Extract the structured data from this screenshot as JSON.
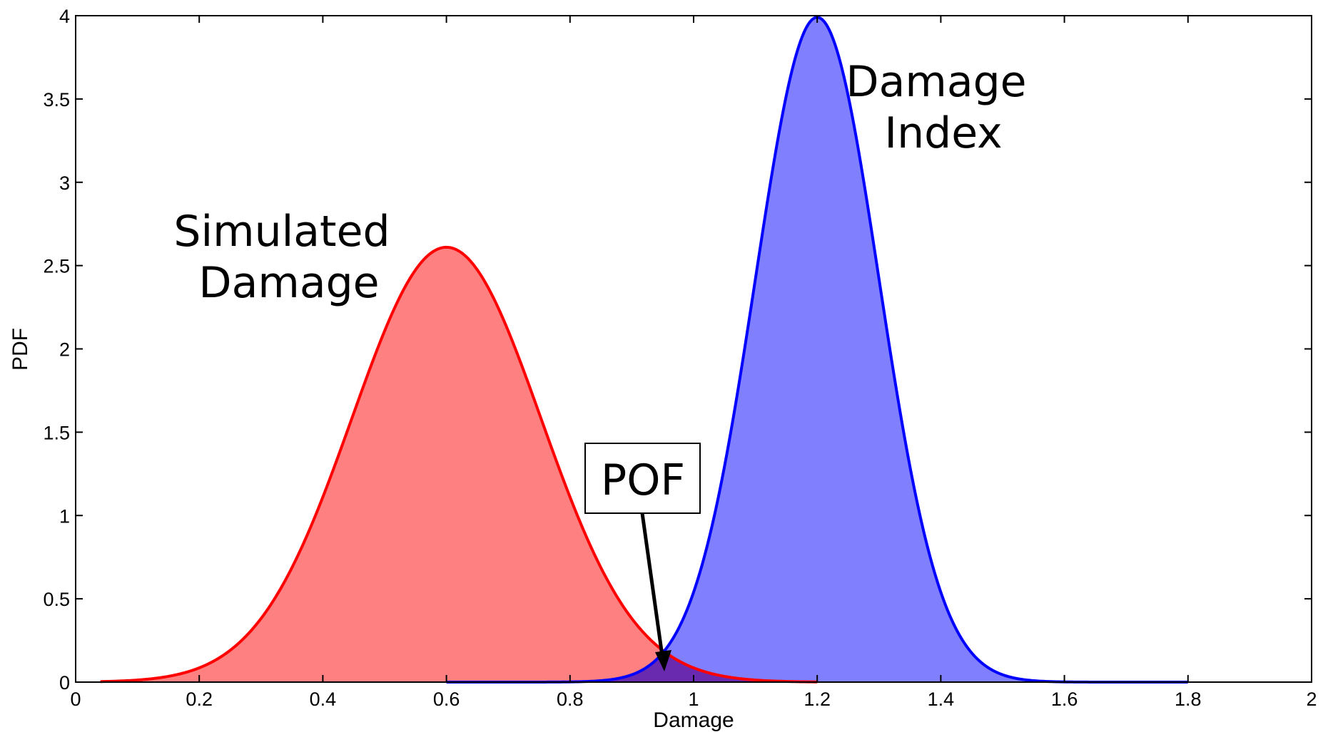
{
  "chart_data": {
    "type": "area",
    "xlabel": "Damage",
    "ylabel": "PDF",
    "xlim": [
      0,
      2
    ],
    "ylim": [
      0,
      4
    ],
    "x_ticks": [
      0,
      0.2,
      0.4,
      0.6,
      0.8,
      1,
      1.2,
      1.4,
      1.6,
      1.8,
      2
    ],
    "x_tick_labels": [
      "0",
      "0.2",
      "0.4",
      "0.6",
      "0.8",
      "1",
      "1.2",
      "1.4",
      "1.6",
      "1.8",
      "2"
    ],
    "y_ticks": [
      0,
      0.5,
      1,
      1.5,
      2,
      2.5,
      3,
      3.5,
      4
    ],
    "y_tick_labels": [
      "0",
      "0.5",
      "1",
      "1.5",
      "2",
      "2.5",
      "3",
      "3.5",
      "4"
    ],
    "grid": false,
    "series": [
      {
        "key": "simulated",
        "distribution": "normal",
        "mean": 0.6,
        "std": 0.153,
        "peak": 2.61,
        "x_range": [
          0.04,
          1.2
        ],
        "line_color": "#ff0000",
        "fill_color": "#ff8080"
      },
      {
        "key": "index",
        "distribution": "normal",
        "mean": 1.2,
        "std": 0.1,
        "peak": 3.99,
        "x_range": [
          0.6,
          1.8
        ],
        "line_color": "#0000ff",
        "fill_color": "#8080ff"
      }
    ],
    "overlap_fill_color": "#6a2ab0",
    "annotations": {
      "simulated_label": [
        "Simulated",
        "Damage"
      ],
      "index_label": [
        "Damage",
        "Index"
      ],
      "pof_label": "POF",
      "pof_arrow_target": {
        "x": 0.955,
        "y": 0.05
      }
    }
  }
}
